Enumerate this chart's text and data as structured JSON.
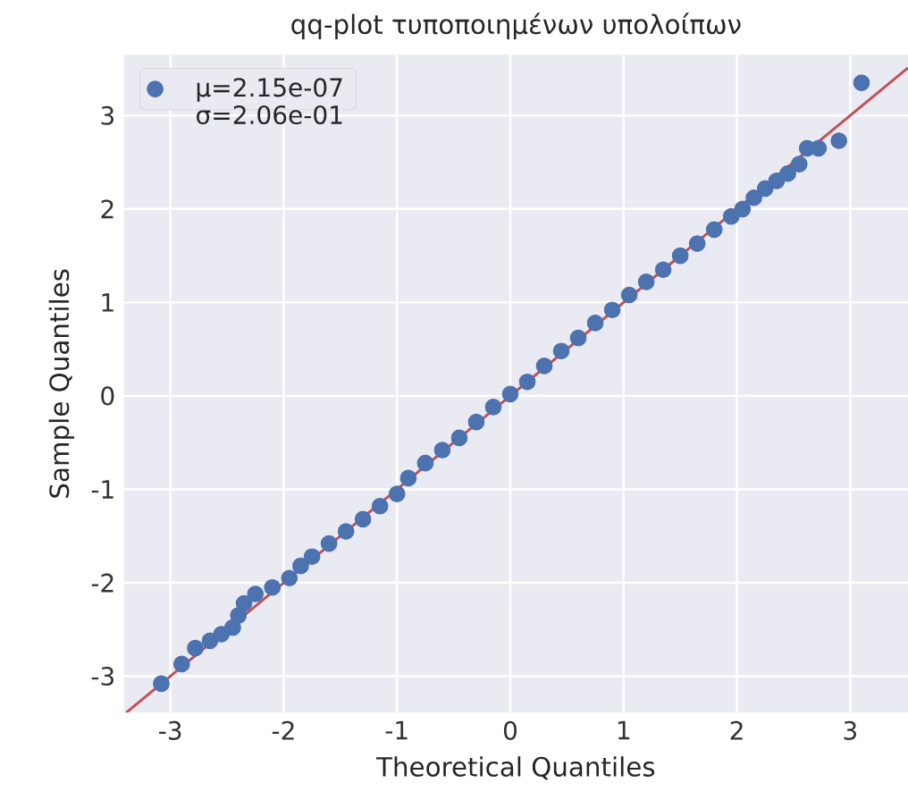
{
  "chart_data": {
    "type": "scatter",
    "title": "qq-plot τυποποιημένων υπολοίπων",
    "xlabel": "Theoretical Quantiles",
    "ylabel": "Sample Quantiles",
    "xlim": [
      -3.41,
      3.51
    ],
    "ylim": [
      -3.39,
      3.65
    ],
    "xticks": [
      -3,
      -2,
      -1,
      0,
      1,
      2,
      3
    ],
    "yticks": [
      -3,
      -2,
      -1,
      0,
      1,
      2,
      3
    ],
    "grid": true,
    "legend": "top left",
    "marker": "circle",
    "series": [
      {
        "name": "μ=2.15e-07 σ=2.06e-01",
        "color": "#4c72b0",
        "x": [
          -3.08,
          -2.9,
          -2.78,
          -2.65,
          -2.55,
          -2.45,
          -2.4,
          -2.35,
          -2.25,
          -2.1,
          -1.95,
          -1.85,
          -1.75,
          -1.6,
          -1.45,
          -1.3,
          -1.15,
          -1.0,
          -0.9,
          -0.75,
          -0.6,
          -0.45,
          -0.3,
          -0.15,
          0.0,
          0.15,
          0.3,
          0.45,
          0.6,
          0.75,
          0.9,
          1.05,
          1.2,
          1.35,
          1.5,
          1.65,
          1.8,
          1.95,
          2.05,
          2.15,
          2.25,
          2.35,
          2.45,
          2.55,
          2.62,
          2.72,
          2.9,
          3.1
        ],
        "values": [
          -3.08,
          -2.87,
          -2.7,
          -2.62,
          -2.55,
          -2.48,
          -2.35,
          -2.22,
          -2.12,
          -2.05,
          -1.95,
          -1.82,
          -1.72,
          -1.58,
          -1.45,
          -1.32,
          -1.18,
          -1.05,
          -0.88,
          -0.72,
          -0.58,
          -0.45,
          -0.28,
          -0.12,
          0.02,
          0.15,
          0.32,
          0.48,
          0.62,
          0.78,
          0.92,
          1.08,
          1.22,
          1.35,
          1.5,
          1.63,
          1.78,
          1.92,
          2.0,
          2.12,
          2.22,
          2.3,
          2.38,
          2.48,
          2.65,
          2.65,
          2.73,
          3.35
        ]
      },
      {
        "type": "line",
        "marker": "none",
        "color": "#c44e52",
        "x": [
          -3.39,
          3.51
        ],
        "values": [
          -3.39,
          3.51
        ]
      }
    ]
  }
}
